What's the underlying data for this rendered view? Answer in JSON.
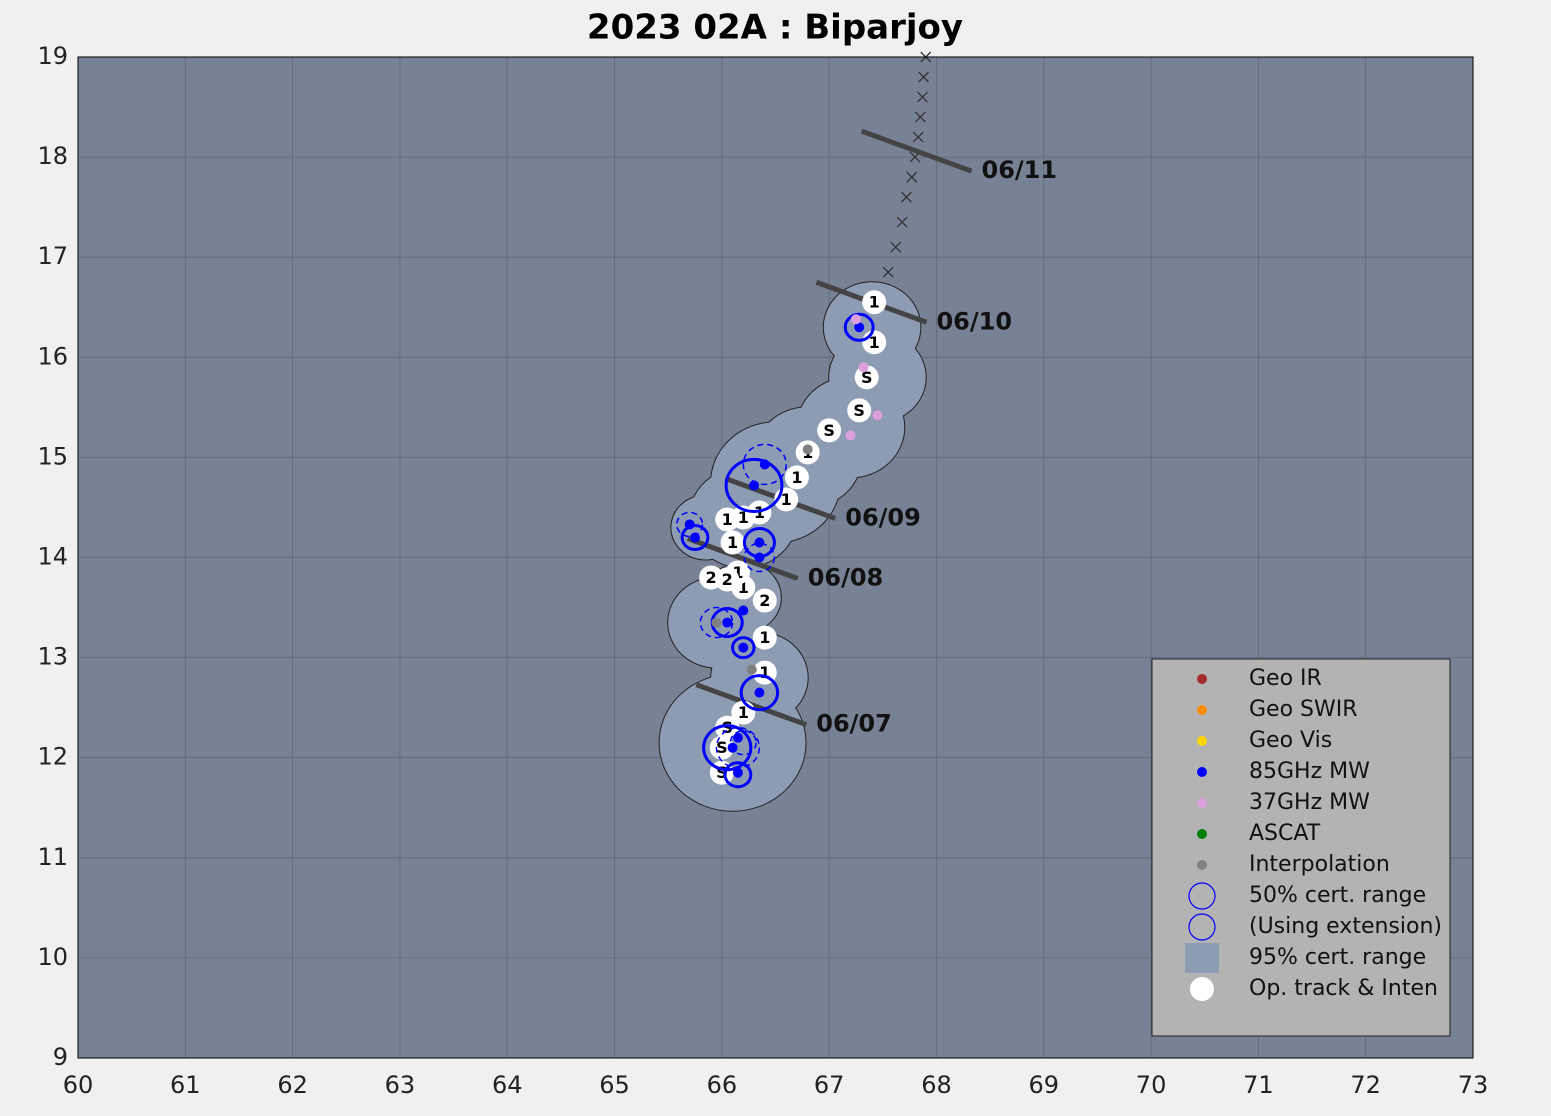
{
  "chart_data": {
    "type": "scatter",
    "title": "2023  02A :  Biparjoy",
    "xlim": [
      60,
      73
    ],
    "ylim": [
      9,
      19
    ],
    "xticks": [
      60,
      61,
      62,
      63,
      64,
      65,
      66,
      67,
      68,
      69,
      70,
      71,
      72,
      73
    ],
    "yticks": [
      9,
      10,
      11,
      12,
      13,
      14,
      15,
      16,
      17,
      18,
      19
    ],
    "grid": true,
    "legend": "lower right",
    "series": [
      {
        "name": "Geo IR",
        "color": "#a52a2a",
        "marker": "dot",
        "x": [],
        "y": []
      },
      {
        "name": "Geo SWIR",
        "color": "#ff8c00",
        "marker": "dot",
        "x": [],
        "y": []
      },
      {
        "name": "Geo Vis",
        "color": "#ffd700",
        "marker": "dot",
        "x": [],
        "y": []
      },
      {
        "name": "85GHz MW",
        "color": "#0000ff",
        "marker": "dot",
        "x": [
          66.15,
          66.1,
          66.15,
          66.35,
          66.2,
          66.05,
          65.75,
          66.35,
          66.3,
          67.28,
          66.4,
          65.7,
          66.35,
          66.2
        ],
        "y": [
          11.85,
          12.1,
          12.2,
          12.65,
          13.1,
          13.35,
          14.2,
          14.15,
          14.72,
          16.3,
          14.93,
          14.33,
          14.0,
          13.47
        ]
      },
      {
        "name": "37GHz MW",
        "color": "#dda0dd",
        "marker": "dot",
        "x": [
          67.2,
          67.25,
          67.45,
          67.32
        ],
        "y": [
          15.22,
          16.38,
          15.42,
          15.9
        ]
      },
      {
        "name": "ASCAT",
        "color": "#008000",
        "marker": "dot",
        "x": [],
        "y": []
      },
      {
        "name": "Interpolation",
        "color": "#808080",
        "marker": "dot",
        "x": [
          66.8,
          66.28,
          65.95
        ],
        "y": [
          15.08,
          12.88,
          13.35
        ]
      },
      {
        "name": "50% cert. range",
        "color": "#0000ff",
        "marker": "ring",
        "x": [
          66.15,
          66.05,
          66.35,
          66.2,
          66.05,
          65.75,
          66.35,
          66.3,
          67.28
        ],
        "y": [
          11.83,
          12.1,
          12.65,
          13.1,
          13.35,
          14.2,
          14.15,
          14.72,
          16.3
        ],
        "sizes": [
          0.12,
          0.22,
          0.17,
          0.1,
          0.14,
          0.12,
          0.14,
          0.26,
          0.13
        ]
      },
      {
        "name": "(Using extension)",
        "color": "#0000ff",
        "marker": "dashed-ring",
        "x": [
          66.2,
          66.15,
          66.4,
          65.7,
          66.35,
          65.95
        ],
        "y": [
          12.15,
          12.1,
          14.93,
          14.33,
          14.0,
          13.35
        ],
        "sizes": [
          0.12,
          0.2,
          0.2,
          0.12,
          0.14,
          0.15
        ]
      },
      {
        "name": "95% cert. range",
        "color": "#8e9cb3",
        "marker": "square",
        "x": [
          66.1,
          66.35,
          65.95,
          66.2,
          65.85,
          66.2,
          66.5,
          66.8,
          67.2,
          67.45,
          67.4
        ],
        "y": [
          12.15,
          12.8,
          13.35,
          13.6,
          14.3,
          14.4,
          14.75,
          15.0,
          15.3,
          15.8,
          16.3
        ],
        "sizes": [
          0.68,
          0.45,
          0.45,
          0.35,
          0.32,
          0.5,
          0.6,
          0.5,
          0.5,
          0.45,
          0.45
        ]
      },
      {
        "name": "Op. track & Inten",
        "color": "#ffffff",
        "marker": "disc",
        "x": [
          66.0,
          66.0,
          66.05,
          66.2,
          66.4,
          66.4,
          66.4,
          66.2,
          66.15,
          65.9,
          66.05,
          66.1,
          66.05,
          66.2,
          66.35,
          66.6,
          66.7,
          66.8,
          67.0,
          67.28,
          67.35,
          67.42,
          67.42
        ],
        "y": [
          11.85,
          12.1,
          12.3,
          12.45,
          12.85,
          13.2,
          13.57,
          13.7,
          13.85,
          13.8,
          13.78,
          14.15,
          14.38,
          14.4,
          14.45,
          14.58,
          14.8,
          15.05,
          15.27,
          15.47,
          15.8,
          16.15,
          16.55
        ],
        "labels": [
          "S",
          "S",
          "S",
          "1",
          "1",
          "1",
          "2",
          "1",
          "1",
          "2",
          "2",
          "1",
          "1",
          "1",
          "1",
          "1",
          "1",
          "1",
          "S",
          "S",
          "S",
          "1",
          "1"
        ]
      }
    ],
    "forecast": {
      "color": "#333333",
      "x": [
        67.55,
        67.62,
        67.68,
        67.72,
        67.77,
        67.8,
        67.83,
        67.85,
        67.87,
        67.88,
        67.9
      ],
      "y": [
        16.85,
        17.1,
        17.35,
        17.6,
        17.8,
        18.0,
        18.2,
        18.4,
        18.6,
        18.8,
        19.0
      ]
    },
    "dates": [
      {
        "label": "06/07",
        "x": 66.88,
        "y": 12.33
      },
      {
        "label": "06/08",
        "x": 66.8,
        "y": 13.79
      },
      {
        "label": "06/09",
        "x": 67.15,
        "y": 14.39
      },
      {
        "label": "06/10",
        "x": 68.0,
        "y": 16.35
      },
      {
        "label": "06/11",
        "x": 68.42,
        "y": 17.86
      }
    ]
  }
}
